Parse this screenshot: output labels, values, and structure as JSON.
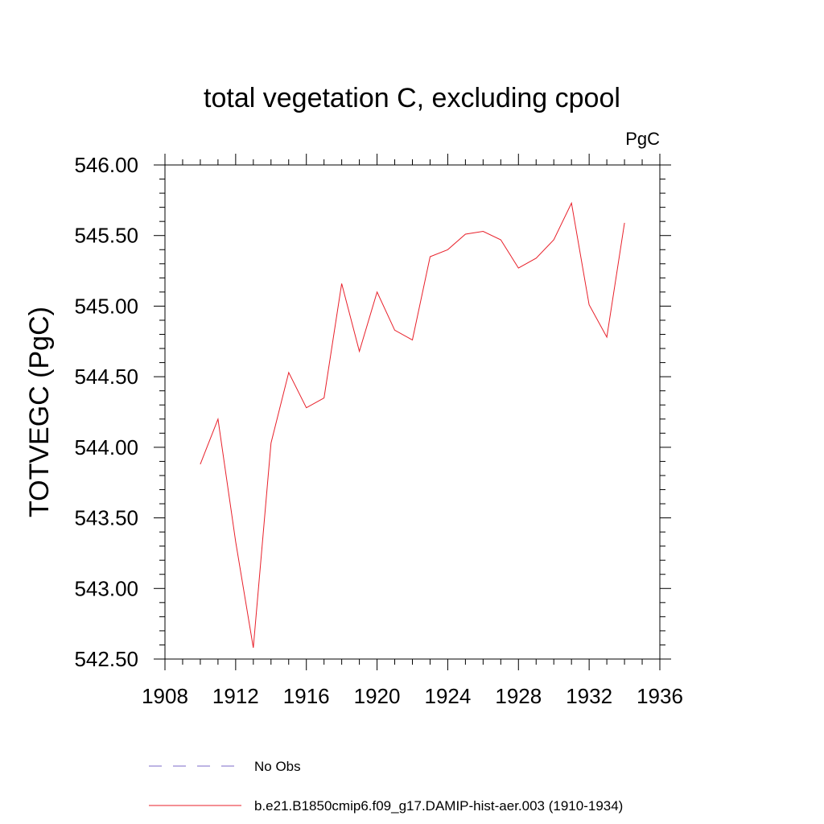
{
  "chart_data": {
    "type": "line",
    "title": "total vegetation C, excluding cpool",
    "units_label": "PgC",
    "ylabel": "TOTVEGC  (PgC)",
    "xlabel": "",
    "xlim": [
      1908,
      1936
    ],
    "ylim": [
      542.5,
      546.0
    ],
    "x_ticks": [
      "1908",
      "1912",
      "1916",
      "1920",
      "1924",
      "1928",
      "1932",
      "1936"
    ],
    "y_ticks": [
      "542.50",
      "543.00",
      "543.50",
      "544.00",
      "544.50",
      "545.00",
      "545.50",
      "546.00"
    ],
    "grid": false,
    "legend_position": "bottom",
    "series": [
      {
        "name": "No Obs",
        "color": "#7b68c8",
        "style": "dashed",
        "x": [],
        "values": []
      },
      {
        "name": "b.e21.B1850cmip6.f09_g17.DAMIP-hist-aer.003 (1910-1934)",
        "color": "#e8202a",
        "style": "solid",
        "x": [
          1910,
          1911,
          1912,
          1913,
          1914,
          1915,
          1916,
          1917,
          1918,
          1919,
          1920,
          1921,
          1922,
          1923,
          1924,
          1925,
          1926,
          1927,
          1928,
          1929,
          1930,
          1931,
          1932,
          1933,
          1934
        ],
        "values": [
          543.88,
          544.2,
          543.33,
          542.58,
          544.03,
          544.53,
          544.28,
          544.35,
          545.16,
          544.68,
          545.1,
          544.83,
          544.76,
          545.35,
          545.4,
          545.51,
          545.53,
          545.47,
          545.27,
          545.34,
          545.47,
          545.73,
          545.01,
          544.78,
          545.59
        ]
      }
    ]
  }
}
